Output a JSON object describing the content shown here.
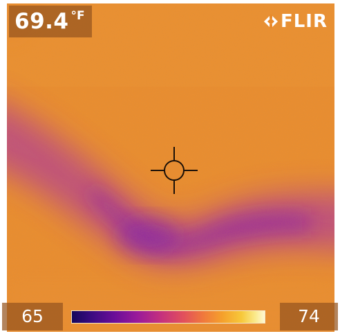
{
  "camera": {
    "brand": "FLIR",
    "logo_icon": "flir-logo-icon"
  },
  "spot_meter": {
    "temperature_value": "69.4",
    "temperature_unit": "°F",
    "crosshair_icon": "crosshair-icon"
  },
  "color_scale": {
    "min_label": "65",
    "max_label": "74",
    "palette": "ironbow",
    "colors": {
      "cold": "#15085c",
      "mid": "#c4307e",
      "warm": "#f0783c",
      "hot": "#fff8d4"
    }
  },
  "image_colors": {
    "background": "#ea8c2a",
    "cool_band": "#a2309a"
  }
}
